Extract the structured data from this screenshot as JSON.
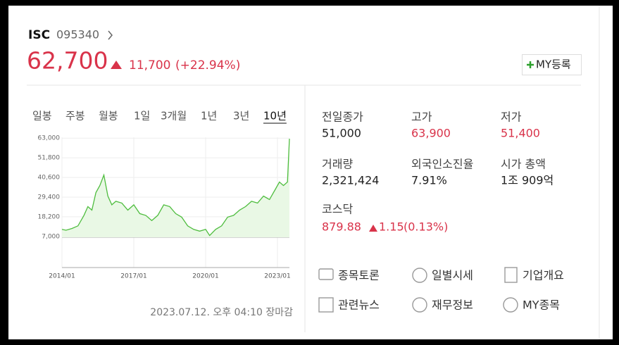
{
  "header": {
    "name": "ISC",
    "code": "095340",
    "price": "62,700",
    "change": "11,700",
    "change_rate": "(+22.94%)",
    "my_button": "MY등록"
  },
  "tabs": [
    "일봉",
    "주봉",
    "월봉",
    "1일",
    "3개월",
    "1년",
    "3년",
    "10년"
  ],
  "active_tab": 7,
  "chart_data": {
    "type": "line",
    "color": "#4fbd3f",
    "x": [
      "2014/01",
      "2014/03",
      "2014/06",
      "2014/09",
      "2014/12",
      "2015/02",
      "2015/04",
      "2015/06",
      "2015/08",
      "2015/10",
      "2015/12",
      "2016/02",
      "2016/04",
      "2016/07",
      "2016/10",
      "2017/01",
      "2017/04",
      "2017/07",
      "2017/10",
      "2018/01",
      "2018/04",
      "2018/07",
      "2018/10",
      "2019/01",
      "2019/04",
      "2019/07",
      "2019/10",
      "2020/01",
      "2020/03",
      "2020/06",
      "2020/09",
      "2020/12",
      "2021/03",
      "2021/06",
      "2021/09",
      "2021/12",
      "2022/03",
      "2022/06",
      "2022/09",
      "2022/12",
      "2023/02",
      "2023/04",
      "2023/06",
      "2023/07"
    ],
    "values": [
      11000,
      10500,
      11500,
      13000,
      19000,
      24000,
      22000,
      32000,
      36000,
      42000,
      30000,
      25000,
      27000,
      26000,
      22000,
      25000,
      20000,
      19000,
      16000,
      19000,
      25000,
      24000,
      20000,
      18000,
      13000,
      11000,
      10000,
      11000,
      7500,
      11000,
      13000,
      18000,
      19000,
      22000,
      24000,
      27000,
      26000,
      30000,
      28000,
      34000,
      38000,
      36000,
      38000,
      62700
    ],
    "xlim": [
      "2014/01",
      "2023/07"
    ],
    "xticks": [
      "2014/01",
      "2017/01",
      "2020/01",
      "2023/01"
    ],
    "ylim": [
      6500,
      63500
    ],
    "yticks": [
      {
        "value": 63000,
        "label": "63,000"
      },
      {
        "value": 51800,
        "label": "51,800"
      },
      {
        "value": 40600,
        "label": "40,600"
      },
      {
        "value": 29400,
        "label": "29,400"
      },
      {
        "value": 18200,
        "label": "18,200"
      },
      {
        "value": 7000,
        "label": "7,000"
      }
    ],
    "grid": true
  },
  "stats": [
    {
      "label": "전일종가",
      "value": "51,000",
      "color": "#222222"
    },
    {
      "label": "고가",
      "value": "63,900",
      "color": "#d9334a"
    },
    {
      "label": "저가",
      "value": "51,400",
      "color": "#d9334a"
    },
    {
      "label": "거래량",
      "value": "2,321,424",
      "color": "#222222"
    },
    {
      "label": "외국인소진율",
      "value": "7.91%",
      "color": "#222222"
    },
    {
      "label": "시가 총액",
      "value": "1조 909억",
      "color": "#222222"
    }
  ],
  "market": {
    "label": "코스닥",
    "value": "879.88",
    "change": "1.15",
    "change_rate": "(0.13%)"
  },
  "links": [
    "종목토론",
    "일별시세",
    "기업개요",
    "관련뉴스",
    "재무정보",
    "MY종목"
  ],
  "timestamp": "2023.07.12. 오후 04:10 장마감"
}
